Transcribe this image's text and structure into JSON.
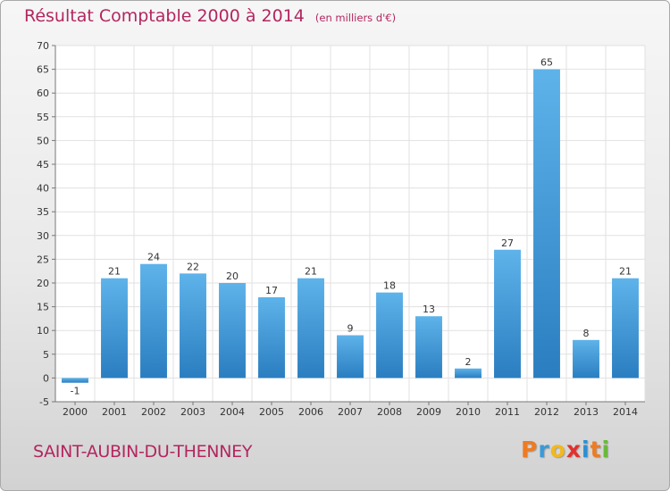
{
  "header": {
    "title": "Résultat Comptable 2000 à 2014",
    "subtitle": "(en milliers d'€)"
  },
  "footer": {
    "commune": "SAINT-AUBIN-DU-THENNEY",
    "logo_letters": [
      "P",
      "r",
      "o",
      "x",
      "i",
      "t",
      "i"
    ],
    "logo_colors": [
      "#ee7b22",
      "#3a9ad8",
      "#f2b81f",
      "#e0312f",
      "#2d8fd4",
      "#ee7b22",
      "#6ab93a"
    ]
  },
  "chart_data": {
    "type": "bar",
    "title": "Résultat Comptable 2000 à 2014",
    "subtitle": "(en milliers d'€)",
    "xlabel": "",
    "ylabel": "",
    "categories": [
      "2000",
      "2001",
      "2002",
      "2003",
      "2004",
      "2005",
      "2006",
      "2007",
      "2008",
      "2009",
      "2010",
      "2011",
      "2012",
      "2013",
      "2014"
    ],
    "values": [
      -1,
      21,
      24,
      22,
      20,
      17,
      21,
      9,
      18,
      13,
      2,
      27,
      65,
      8,
      21
    ],
    "value_labels": [
      "-1",
      "21",
      "24",
      "22",
      "20",
      "17",
      "21",
      "9",
      "18",
      "13",
      "2",
      "27",
      "65",
      "8",
      "21"
    ],
    "ylim": [
      -5,
      70
    ],
    "yticks": [
      -5,
      0,
      5,
      10,
      15,
      20,
      25,
      30,
      35,
      40,
      45,
      50,
      55,
      60,
      65,
      70
    ],
    "grid": true,
    "bar_color_top": "#5eb3ea",
    "bar_color_bottom": "#2a7ec0",
    "grid_color": "#e1e1e1",
    "plot_background": "#ffffff"
  }
}
